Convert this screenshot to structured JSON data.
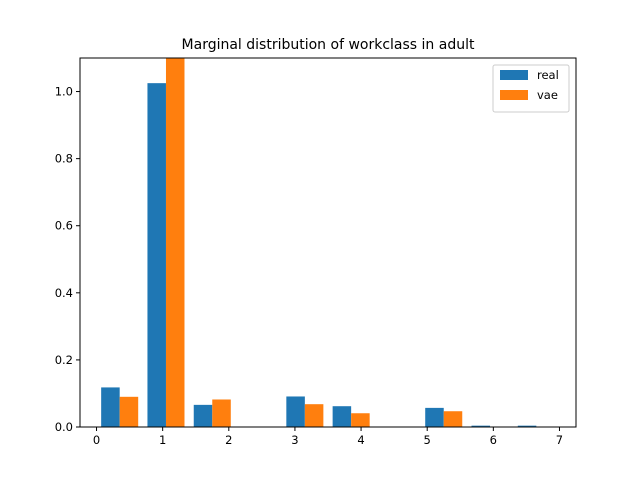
{
  "chart_data": {
    "type": "bar",
    "title": "Marginal distribution of workclass in adult",
    "xlabel": "",
    "ylabel": "",
    "xlim": [
      -0.25,
      7.25
    ],
    "ylim": [
      0,
      1.1
    ],
    "xticks": [
      "0",
      "1",
      "2",
      "3",
      "4",
      "5",
      "6",
      "7"
    ],
    "yticks": [
      "0.0",
      "0.2",
      "0.4",
      "0.6",
      "0.8",
      "1.0"
    ],
    "legend_position": "top-right",
    "grid": false,
    "series": [
      {
        "name": "real",
        "color": "#1f77b4",
        "x": [
          0.21,
          0.91,
          1.61,
          3.01,
          3.71,
          5.11,
          5.81,
          6.51
        ],
        "values": [
          0.118,
          1.025,
          0.066,
          0.091,
          0.062,
          0.057,
          0.004,
          0.004
        ]
      },
      {
        "name": "vae",
        "color": "#ff7f0e",
        "x": [
          0.49,
          1.19,
          1.89,
          3.29,
          3.99,
          5.39,
          6.09,
          6.79
        ],
        "values": [
          0.09,
          1.1,
          0.082,
          0.068,
          0.041,
          0.047,
          0.0,
          0.0
        ]
      }
    ]
  }
}
